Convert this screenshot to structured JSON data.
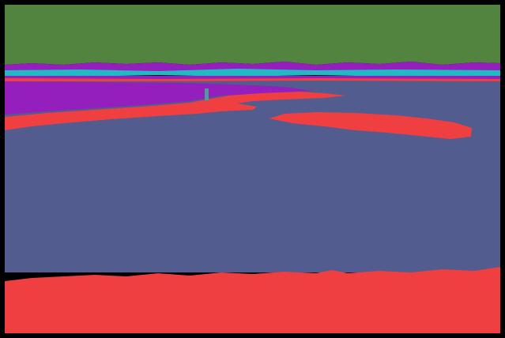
{
  "image": {
    "kind": "segmentation-mask",
    "background_color": "#000000"
  },
  "regions": [
    {
      "id": "sky",
      "color": "#52843f"
    },
    {
      "id": "far-shore-band",
      "color": "#951fbd"
    },
    {
      "id": "horizon-strip",
      "color": "#22b8c4"
    },
    {
      "id": "water",
      "color": "#525c8f"
    },
    {
      "id": "sand-bars",
      "color": "#f03f41"
    },
    {
      "id": "mudflat-left",
      "color": "#951fbd"
    },
    {
      "id": "marker-post",
      "color": "#4f9a9a"
    },
    {
      "id": "foreground-beach",
      "color": "#f03f41"
    }
  ]
}
